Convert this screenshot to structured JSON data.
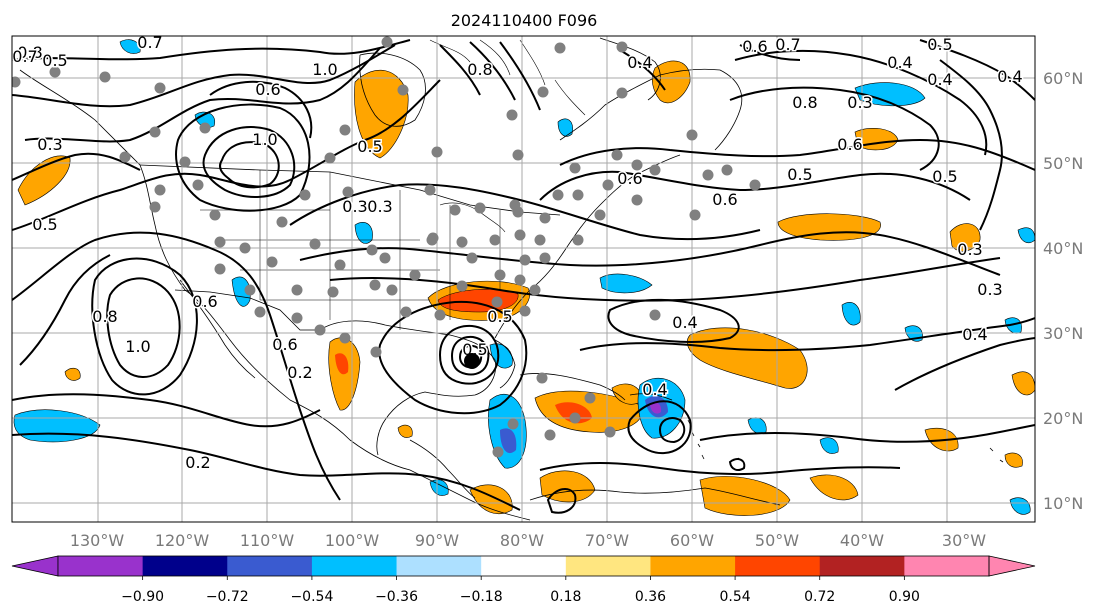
{
  "title": "2024110400 F096",
  "longitude_labels": [
    "130°W",
    "120°W",
    "110°W",
    "100°W",
    "90°W",
    "80°W",
    "70°W",
    "60°W",
    "50°W",
    "40°W",
    "30°W"
  ],
  "latitude_labels": [
    "60°N",
    "50°N",
    "40°N",
    "30°N",
    "20°N",
    "10°N"
  ],
  "colorbar": {
    "colors": [
      "#9932CC",
      "#00008B",
      "#3A5BD0",
      "#00BFFF",
      "#ADE0FF",
      "#FFFFFF",
      "#FFE680",
      "#FFA500",
      "#FF4500",
      "#B22222",
      "#FF85B0"
    ],
    "tick_labels": [
      "−0.90",
      "−0.72",
      "−0.54",
      "−0.36",
      "−0.18",
      "0.18",
      "0.36",
      "0.54",
      "0.72",
      "0.90"
    ],
    "extend": "both"
  },
  "contour_labels": [
    "0.8",
    "0.7",
    "0.7",
    "0.6",
    "0.6",
    "0.4",
    "0.4",
    "0.3",
    "0.3",
    "1.0",
    "1.0",
    "0.5",
    "0.5",
    "0.5",
    "0.5",
    "0.3",
    "0.8",
    "0.8",
    "0.7",
    "0.6",
    "0.4",
    "0.5",
    "0.6",
    "0.5",
    "0.3",
    "0.4",
    "0.3",
    "0.8",
    "1.0",
    "0.6",
    "0.2",
    "0.2",
    "0.5",
    "0.4",
    "0.5",
    "0.6",
    "0.4",
    "0.4",
    "0.3",
    "0.6"
  ],
  "map_style": {
    "ocean": "#ffffff",
    "grid": "#a8a8a8",
    "coast": "#000000",
    "contour": "#000000",
    "station_dot": "#808080"
  }
}
